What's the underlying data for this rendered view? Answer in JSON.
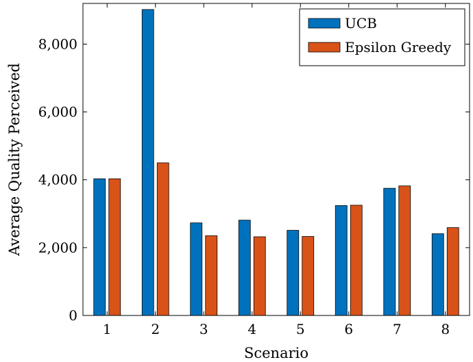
{
  "chart_data": {
    "type": "bar",
    "title": "",
    "xlabel": "Scenario",
    "ylabel": "Average Quality Perceived",
    "categories": [
      "1",
      "2",
      "3",
      "4",
      "5",
      "6",
      "7",
      "8"
    ],
    "ylim": [
      0,
      9200
    ],
    "yticks": [
      0,
      2000,
      4000,
      6000,
      8000
    ],
    "ytick_labels": [
      "0",
      "2,000",
      "4,000",
      "6,000",
      "8,000"
    ],
    "grid": false,
    "legend_position": "top-right",
    "series": [
      {
        "name": "UCB",
        "color": "#0072bd",
        "values": [
          4030,
          9020,
          2730,
          2810,
          2510,
          3240,
          3750,
          2410
        ]
      },
      {
        "name": "Epsilon Greedy",
        "color": "#d95319",
        "values": [
          4030,
          4500,
          2350,
          2320,
          2330,
          3250,
          3820,
          2590
        ]
      }
    ]
  }
}
